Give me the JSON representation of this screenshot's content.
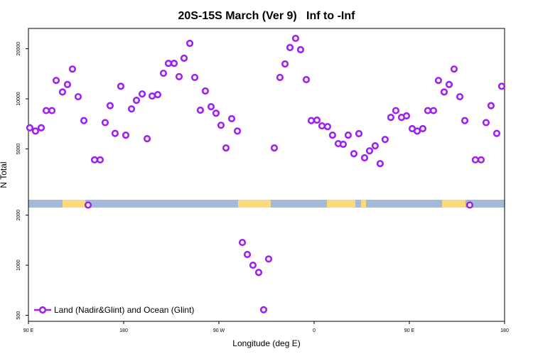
{
  "chart_data": {
    "type": "scatter",
    "title": "20S-15S March (Ver 9)   Inf to -Inf",
    "x_label": "Longitude (deg E)",
    "y_label": "N Total",
    "log_y": true,
    "legend_position": "bottom left",
    "xlim": [
      90,
      540
    ],
    "xticks": [
      {
        "value": 90,
        "label": "90 E"
      },
      180,
      {
        "value": 270,
        "label": "90 W"
      },
      {
        "value": 360,
        "label": "0"
      },
      {
        "value": 450,
        "label": "90 E"
      },
      {
        "value": 540,
        "label": "180"
      }
    ],
    "ylim": [
      460,
      26500
    ],
    "yticks": [
      500,
      1000,
      2000,
      5000,
      10000,
      20000
    ],
    "series": [
      {
        "name": "Land (Nadir&Glint) and Ocean (Glint)",
        "color": "#a020f0",
        "x": [
          91.3,
          96.7,
          102.1,
          106.8,
          112.2,
          116.2,
          122.2,
          126.9,
          131.6,
          137.0,
          142.4,
          146.4,
          152.5,
          157.8,
          162.5,
          167.2,
          171.9,
          177.3,
          182.0,
          187.4,
          192.1,
          197.5,
          202.2,
          206.9,
          212.2,
          217.6,
          222.3,
          227.7,
          232.4,
          237.1,
          242.5,
          247.2,
          252.5,
          257.2,
          262.6,
          267.3,
          272.0,
          276.7,
          282.1,
          287.5,
          292.2,
          296.9,
          302.2,
          307.6,
          312.3,
          317.0,
          322.4,
          327.7,
          332.5,
          337.2,
          342.5,
          347.2,
          352.6,
          357.3,
          362.7,
          367.4,
          372.7,
          377.4,
          382.8,
          387.5,
          392.2,
          397.6,
          402.3,
          407.7,
          412.4,
          417.7,
          422.4,
          427.1,
          432.5,
          437.2,
          442.6,
          447.3,
          452.7,
          457.4,
          462.7,
          467.4,
          472.8,
          477.5,
          482.9,
          487.6,
          492.3,
          497.7,
          502.4,
          507.1,
          512.4,
          517.8,
          522.5,
          527.2,
          532.6,
          537.3
        ],
        "values": [
          6700,
          6400,
          6700,
          8500,
          8500,
          12900,
          11000,
          12200,
          15100,
          10300,
          7400,
          2300,
          4300,
          4300,
          7200,
          9100,
          6200,
          11900,
          6050,
          8700,
          9800,
          10700,
          5760,
          10400,
          10600,
          14250,
          16350,
          16350,
          13600,
          17550,
          21550,
          13450,
          8550,
          11150,
          8970,
          8200,
          6940,
          5070,
          7600,
          6400,
          1370,
          1160,
          1000,
          905,
          540,
          1090,
          5070,
          13450,
          16200,
          20350,
          23100,
          19750,
          13050,
          7400,
          7450,
          6880,
          6810,
          6050,
          5380,
          5330,
          6050,
          4680,
          6180,
          4420,
          4870,
          5220,
          4080,
          5700,
          7740,
          8500,
          7740,
          7900,
          6620,
          6400,
          6620,
          8500,
          8500,
          12900,
          11000,
          12200,
          15100,
          10300,
          7400,
          2300,
          4300,
          4300,
          7200,
          9100,
          6200,
          11900
        ]
      }
    ]
  }
}
